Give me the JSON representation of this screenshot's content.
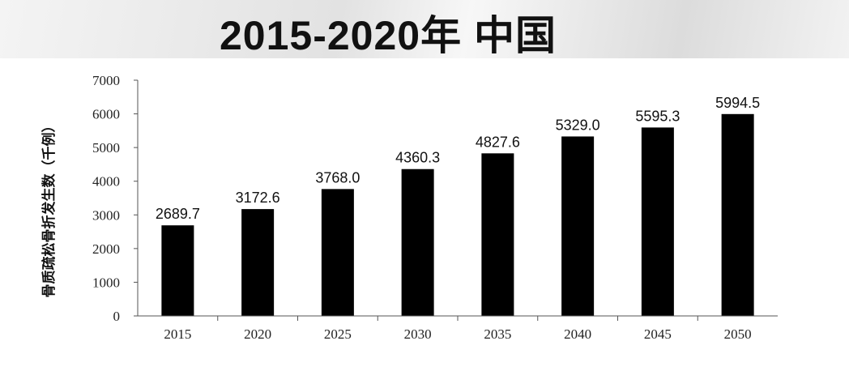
{
  "title": "2015-2020年  中国",
  "chart_data": {
    "type": "bar",
    "categories": [
      "2015",
      "2020",
      "2025",
      "2030",
      "2035",
      "2040",
      "2045",
      "2050"
    ],
    "values": [
      2689.7,
      3172.6,
      3768.0,
      4360.3,
      4827.6,
      5329.0,
      5595.3,
      5994.5
    ],
    "value_labels": [
      "2689.7",
      "3172.6",
      "3768.0",
      "4360.3",
      "4827.6",
      "5329.0",
      "5595.3",
      "5994.5"
    ],
    "ylabel": "骨质疏松骨折发生数（千例）",
    "xlabel": "",
    "ylim": [
      0,
      7000
    ],
    "yticks": [
      "0",
      "1000",
      "2000",
      "3000",
      "4000",
      "5000",
      "6000",
      "7000"
    ],
    "bar_color": "#000000",
    "grid": false,
    "legend": "none"
  }
}
